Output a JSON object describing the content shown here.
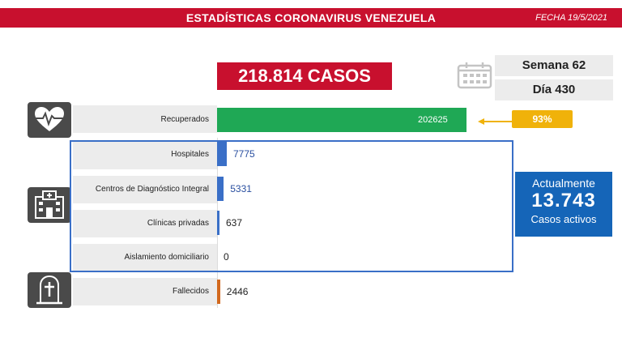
{
  "header": {
    "title": "ESTADÍSTICAS CORONAVIRUS VENEZUELA",
    "date": "FECHA 19/5/2021"
  },
  "summary": {
    "total_cases": "218.814 CASOS",
    "week": "Semana 62",
    "day": "Día 430"
  },
  "recovered_pct": "93%",
  "active": {
    "top": "Actualmente",
    "number": "13.743",
    "bottom": "Casos activos"
  },
  "colors": {
    "header": "#c8102e",
    "recovered": "#1fa855",
    "hospital": "#3a6fc7",
    "deaths": "#d2691e",
    "percent": "#f0b20a",
    "active": "#1565b8"
  },
  "icons": {
    "recovered": "heart-pulse-icon",
    "hospital": "hospital-icon",
    "deaths": "tombstone-icon",
    "calendar": "calendar-icon"
  },
  "chart_data": {
    "type": "bar",
    "orientation": "horizontal",
    "categories": [
      "Recuperados",
      "Hospitales",
      "Centros de Diagnóstico Integral",
      "Clínicas privadas",
      "Aislamiento domiciliario",
      "Fallecidos"
    ],
    "values": [
      202625,
      7775,
      5331,
      637,
      0,
      2446
    ],
    "value_labels": [
      "202625",
      "7775",
      "5331",
      "637",
      "0",
      "2446"
    ],
    "title": "",
    "xlabel": "",
    "ylabel": "",
    "grid": false
  }
}
